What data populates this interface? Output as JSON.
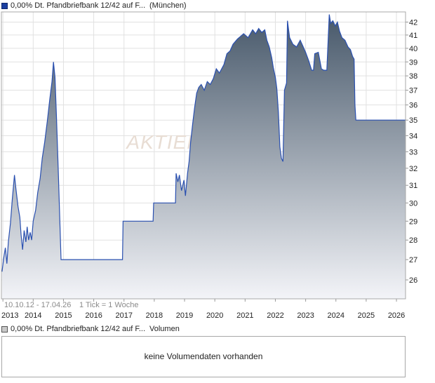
{
  "legend": {
    "name": "0,00% Dt. Pfandbriefbank 12/42 auf F...",
    "exchange": "(München)",
    "swatch_color": "#1b3fa0"
  },
  "watermark": "AKTIEN",
  "chart_data": {
    "type": "area",
    "scale": "log",
    "line_color": "#2a50b0",
    "fill_top": "#47586a",
    "fill_bottom": "#f3f4f8",
    "range_label": "10.10.12 - 17.04.26",
    "tick_label": "1 Tick = 1 Woche",
    "ylim": [
      25.1,
      42.8
    ],
    "xlim": [
      2012.95,
      2026.3
    ],
    "yticks": [
      26,
      27,
      28,
      29,
      30,
      31,
      32,
      33,
      34,
      35,
      36,
      37,
      38,
      39,
      40,
      41,
      42
    ],
    "xticks": [
      2013,
      2014,
      2015,
      2016,
      2017,
      2018,
      2019,
      2020,
      2021,
      2022,
      2023,
      2024,
      2025,
      2026
    ],
    "grid": true,
    "points": [
      [
        2012.97,
        26.4
      ],
      [
        2013.02,
        27.0
      ],
      [
        2013.08,
        27.6
      ],
      [
        2013.13,
        26.8
      ],
      [
        2013.18,
        27.9
      ],
      [
        2013.25,
        28.9
      ],
      [
        2013.31,
        30.2
      ],
      [
        2013.38,
        31.6
      ],
      [
        2013.43,
        30.8
      ],
      [
        2013.5,
        29.8
      ],
      [
        2013.56,
        29.2
      ],
      [
        2013.6,
        28.3
      ],
      [
        2013.65,
        27.5
      ],
      [
        2013.7,
        28.5
      ],
      [
        2013.76,
        27.9
      ],
      [
        2013.8,
        28.7
      ],
      [
        2013.85,
        28.0
      ],
      [
        2013.9,
        28.4
      ],
      [
        2013.95,
        28.0
      ],
      [
        2014.0,
        29.0
      ],
      [
        2014.08,
        29.6
      ],
      [
        2014.15,
        30.6
      ],
      [
        2014.23,
        31.4
      ],
      [
        2014.3,
        32.6
      ],
      [
        2014.38,
        33.6
      ],
      [
        2014.47,
        35.0
      ],
      [
        2014.55,
        36.4
      ],
      [
        2014.62,
        37.6
      ],
      [
        2014.67,
        39.0
      ],
      [
        2014.72,
        37.9
      ],
      [
        2014.77,
        35.2
      ],
      [
        2014.83,
        31.8
      ],
      [
        2014.88,
        29.0
      ],
      [
        2014.92,
        27.0
      ],
      [
        2014.97,
        27.0
      ],
      [
        2016.95,
        27.0
      ],
      [
        2016.97,
        29.0
      ],
      [
        2017.96,
        29.0
      ],
      [
        2017.98,
        30.0
      ],
      [
        2018.7,
        30.0
      ],
      [
        2018.72,
        31.7
      ],
      [
        2018.78,
        31.2
      ],
      [
        2018.83,
        31.6
      ],
      [
        2018.9,
        30.7
      ],
      [
        2018.98,
        31.3
      ],
      [
        2019.03,
        30.4
      ],
      [
        2019.1,
        31.7
      ],
      [
        2019.15,
        32.4
      ],
      [
        2019.2,
        33.6
      ],
      [
        2019.27,
        34.8
      ],
      [
        2019.33,
        35.8
      ],
      [
        2019.4,
        36.8
      ],
      [
        2019.47,
        37.2
      ],
      [
        2019.55,
        37.4
      ],
      [
        2019.65,
        37.0
      ],
      [
        2019.75,
        37.6
      ],
      [
        2019.85,
        37.4
      ],
      [
        2019.95,
        37.8
      ],
      [
        2020.05,
        38.5
      ],
      [
        2020.15,
        38.2
      ],
      [
        2020.3,
        38.8
      ],
      [
        2020.4,
        39.6
      ],
      [
        2020.5,
        39.8
      ],
      [
        2020.6,
        40.3
      ],
      [
        2020.75,
        40.7
      ],
      [
        2020.85,
        40.9
      ],
      [
        2020.95,
        41.1
      ],
      [
        2021.1,
        40.8
      ],
      [
        2021.25,
        41.4
      ],
      [
        2021.35,
        41.1
      ],
      [
        2021.45,
        41.5
      ],
      [
        2021.55,
        41.2
      ],
      [
        2021.65,
        41.4
      ],
      [
        2021.72,
        40.6
      ],
      [
        2021.8,
        40.1
      ],
      [
        2021.88,
        39.3
      ],
      [
        2021.93,
        38.6
      ],
      [
        2022.0,
        37.9
      ],
      [
        2022.05,
        37.1
      ],
      [
        2022.1,
        35.5
      ],
      [
        2022.15,
        33.3
      ],
      [
        2022.2,
        32.6
      ],
      [
        2022.25,
        32.4
      ],
      [
        2022.3,
        37.0
      ],
      [
        2022.37,
        37.5
      ],
      [
        2022.4,
        42.1
      ],
      [
        2022.47,
        40.8
      ],
      [
        2022.58,
        40.3
      ],
      [
        2022.7,
        40.1
      ],
      [
        2022.82,
        40.6
      ],
      [
        2022.92,
        40.1
      ],
      [
        2023.0,
        39.7
      ],
      [
        2023.1,
        39.1
      ],
      [
        2023.2,
        38.4
      ],
      [
        2023.26,
        38.4
      ],
      [
        2023.3,
        39.6
      ],
      [
        2023.42,
        39.7
      ],
      [
        2023.52,
        38.5
      ],
      [
        2023.6,
        38.4
      ],
      [
        2023.7,
        38.4
      ],
      [
        2023.78,
        42.6
      ],
      [
        2023.83,
        41.9
      ],
      [
        2023.9,
        42.1
      ],
      [
        2023.98,
        41.7
      ],
      [
        2024.05,
        42.0
      ],
      [
        2024.12,
        41.3
      ],
      [
        2024.2,
        40.8
      ],
      [
        2024.3,
        40.6
      ],
      [
        2024.4,
        40.1
      ],
      [
        2024.48,
        39.9
      ],
      [
        2024.55,
        39.4
      ],
      [
        2024.6,
        39.2
      ],
      [
        2024.63,
        36.0
      ],
      [
        2024.66,
        35.0
      ],
      [
        2026.3,
        35.0
      ]
    ]
  },
  "volume": {
    "name": "0,00% Dt. Pfandbriefbank 12/42 auf F...",
    "label": "Volumen",
    "message": "keine Volumendaten vorhanden"
  }
}
